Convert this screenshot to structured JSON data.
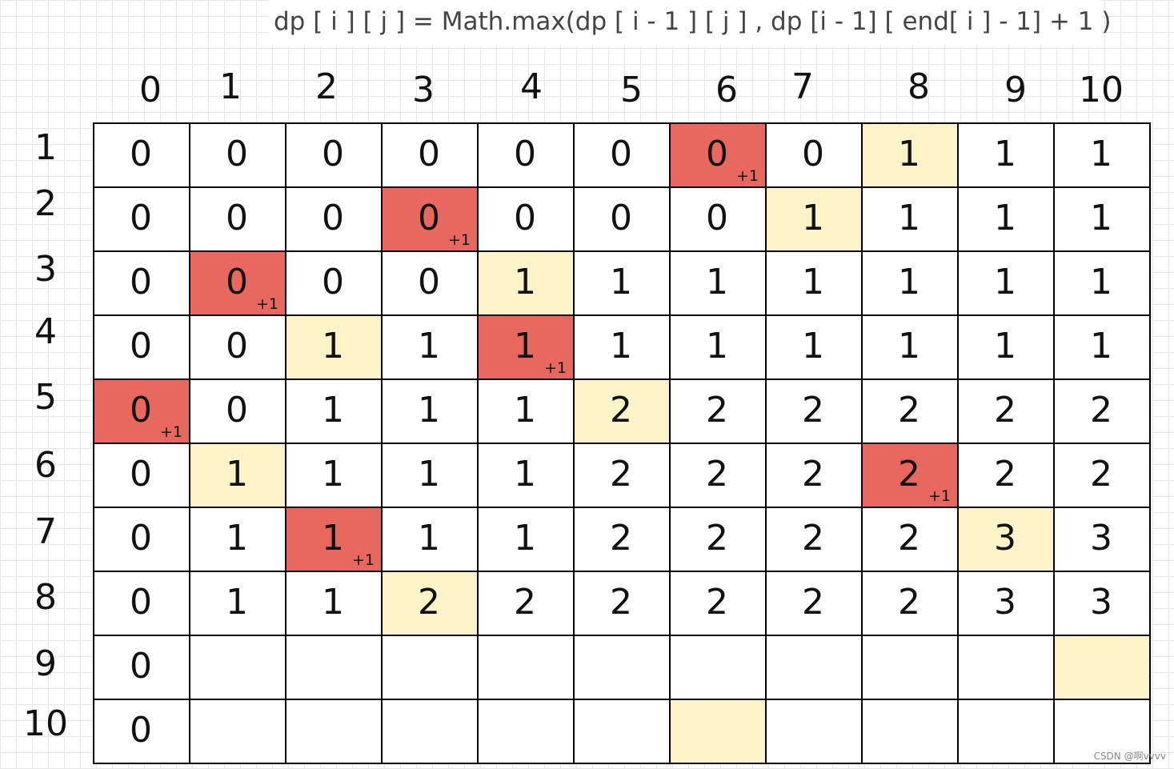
{
  "formula": "dp [ i ] [ j ] = Math.max(dp [ i - 1 ] [ j ]  , dp [i - 1] [ end[ i ] - 1] + 1 )",
  "columns": [
    "0",
    "1",
    "2",
    "3",
    "4",
    "5",
    "6",
    "7",
    "8",
    "9",
    "10"
  ],
  "rows": [
    "1",
    "2",
    "3",
    "4",
    "5",
    "6",
    "7",
    "8",
    "9",
    "10"
  ],
  "plus_label": "+1",
  "colors": {
    "red": "#e8675f",
    "yellow": "#fdf3c8",
    "grid_line": "#000000"
  },
  "table": [
    [
      "0",
      "0",
      "0",
      "0",
      "0",
      "0",
      "0",
      "0",
      "1",
      "1",
      "1"
    ],
    [
      "0",
      "0",
      "0",
      "0",
      "0",
      "0",
      "0",
      "1",
      "1",
      "1",
      "1"
    ],
    [
      "0",
      "0",
      "0",
      "0",
      "1",
      "1",
      "1",
      "1",
      "1",
      "1",
      "1"
    ],
    [
      "0",
      "0",
      "1",
      "1",
      "1",
      "1",
      "1",
      "1",
      "1",
      "1",
      "1"
    ],
    [
      "0",
      "0",
      "1",
      "1",
      "1",
      "2",
      "2",
      "2",
      "2",
      "2",
      "2"
    ],
    [
      "0",
      "1",
      "1",
      "1",
      "1",
      "2",
      "2",
      "2",
      "2",
      "2",
      "2"
    ],
    [
      "0",
      "1",
      "1",
      "1",
      "1",
      "2",
      "2",
      "2",
      "2",
      "3",
      "3"
    ],
    [
      "0",
      "1",
      "1",
      "2",
      "2",
      "2",
      "2",
      "2",
      "2",
      "3",
      "3"
    ],
    [
      "0",
      "",
      "",
      "",
      "",
      "",
      "",
      "",
      "",
      "",
      ""
    ],
    [
      "0",
      "",
      "",
      "",
      "",
      "",
      "",
      "",
      "",
      "",
      ""
    ]
  ],
  "highlights": {
    "red": [
      [
        0,
        6
      ],
      [
        1,
        3
      ],
      [
        2,
        1
      ],
      [
        3,
        4
      ],
      [
        4,
        0
      ],
      [
        5,
        8
      ],
      [
        6,
        2
      ]
    ],
    "yellow": [
      [
        0,
        8
      ],
      [
        1,
        7
      ],
      [
        2,
        4
      ],
      [
        3,
        2
      ],
      [
        4,
        5
      ],
      [
        5,
        1
      ],
      [
        6,
        9
      ],
      [
        7,
        3
      ],
      [
        8,
        10
      ],
      [
        9,
        6
      ]
    ]
  },
  "watermark": "CSDN @啊vvvv"
}
